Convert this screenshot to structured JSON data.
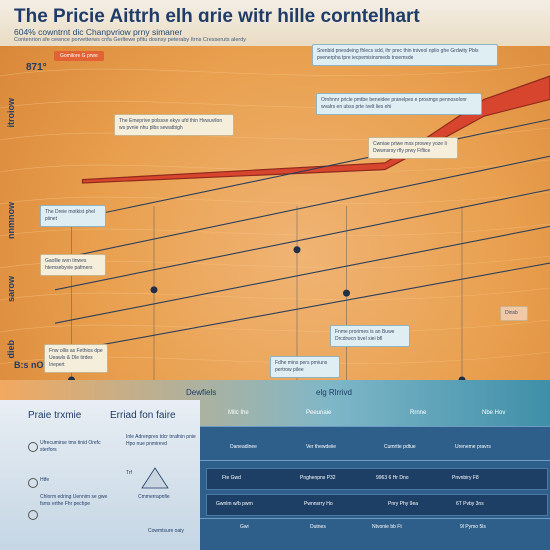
{
  "header": {
    "title": "The Pricie Aittrh elh ɑrie  witr hille corntelhart",
    "subtitle": "604% cowntrnt dic Chanpvriow prny simaner",
    "caption": "Contenrion sfe cewnce porvetterws cnfa Gerltewe pfitu dosnsy peteraby Itrns Cresseruts alerdy"
  },
  "tag_label": "Gomilore G prwe",
  "y_ticks": [
    "871°",
    "itroiow",
    "nnmnow",
    "sarow",
    "dieb",
    "B:s nOD"
  ],
  "notes": [
    "The Emeprive polssse ekyv ufd thin Hvwuvilon ws pvnie nhu plbs sewatbigh",
    "The Dreie motkist phel piinet",
    "Gaollie wvn tinwes htemsebyvie pafmers",
    "Fnw ollis as Fethios dpe Ueawls & Dle tirdes Iriepert",
    "Srenbid pnesdeing fhlecs sdd, ihr prec thin tniveol nplio ghe Grdwity Pbls pvenerpha tpre iecpemisinsmeds tnsemsde",
    "Ornhnnr pricle pmtbe beneidee pranelpes e prosmgs pennosolonr wvalrs en ubss prte ivelt lies ehi",
    "Cwniae priwe mss prowey yoze Ii Dwwnsrsy rfly prwy Fiflice",
    "Fnme prorimes is an Buwe Drcdrwcn bvel siei bfl",
    "Fdhe mins pers prniuns pertrow pilee",
    "Dinsb"
  ],
  "x_labels": [
    "Dewfiels",
    "elg Rlrrivd"
  ],
  "legend": {
    "heading_left": "Praie trxmie",
    "heading_right": "Erriad fon faire",
    "left_col": [
      "Ufrecumirse tms tinid Orefc sterfors",
      "Htfe",
      "Chlorm edring Uennim se gwe fsms erthe Fhr pechpe"
    ],
    "right_col": [
      "Inle Adrenpres tdcr trrafnin pnie Hpo nue pnmirevd",
      "Trf",
      "Cmmerrapnfie",
      "Cowmtsure oaiy"
    ]
  },
  "table": {
    "headers": [
      "Milc Ihe",
      "Peeunaie",
      "Rrnne",
      "Nbe Hov"
    ],
    "rows": [
      [
        "Daneadinee",
        "Ver thewdeiie",
        "Cumrtte pdtue",
        "Ureneme pravrs"
      ],
      [
        "Fte  Gwd",
        "Pnghenpns  P32",
        "9963 6 Hr Dno",
        "Pnvnbiry F8"
      ],
      [
        "Gwnlm w/b pwrn",
        "Pwnnsrry Ho",
        "Pnry Phy 9ea",
        "6T Pvby 3ns"
      ],
      [
        "Gwi",
        "Dutnes",
        "Ntvonie bb  Ft",
        "9l Pymo  5ls"
      ]
    ]
  },
  "colors": {
    "background": "#e99f4e",
    "gridline": "#f6c98a",
    "series_line": "#2b3f5c",
    "highlight_band": "#d8452e",
    "highlight_edge": "#8f2a1c",
    "table_band": "#2d5f8a"
  },
  "chart_data": {
    "type": "line",
    "title": "The Pricie Aittrh elh ɑrie  witr hille corntelhart",
    "subtitle": "604% cowntrnt dic Chanpvriow prny simaner",
    "xlabel": "",
    "ylabel": "",
    "xlim": [
      0,
      100
    ],
    "ylim": [
      0,
      100
    ],
    "grid": true,
    "x": [
      10,
      100
    ],
    "series": [
      {
        "values": [
          47,
          78
        ]
      },
      {
        "values": [
          36,
          67
        ]
      },
      {
        "values": [
          27,
          57
        ]
      },
      {
        "values": [
          17,
          46
        ]
      },
      {
        "values": [
          8,
          35
        ]
      }
    ],
    "band": {
      "x": [
        15,
        70,
        78,
        88,
        100
      ],
      "lower": [
        59,
        63,
        70,
        79,
        84
      ],
      "upper": [
        60,
        65,
        73,
        84,
        91
      ]
    },
    "markers": [
      {
        "x": 13,
        "y": 0
      },
      {
        "x": 28,
        "y": 27
      },
      {
        "x": 54,
        "y": 39
      },
      {
        "x": 63,
        "y": 26
      },
      {
        "x": 84,
        "y": 0
      }
    ]
  }
}
